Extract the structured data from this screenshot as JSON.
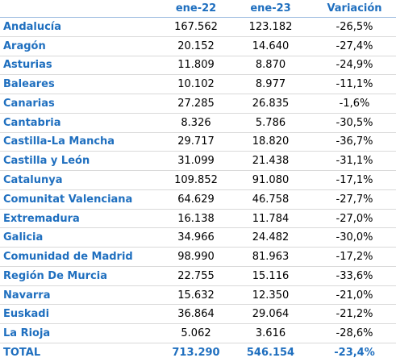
{
  "table": {
    "header": [
      "ene-22",
      "ene-23",
      "Variación"
    ],
    "rows": [
      [
        "Andalucía",
        "167.562",
        "123.182",
        "-26,5%"
      ],
      [
        "Aragón",
        "20.152",
        "14.640",
        "-27,4%"
      ],
      [
        "Asturias",
        "11.809",
        "8.870",
        "-24,9%"
      ],
      [
        "Baleares",
        "10.102",
        "8.977",
        "-11,1%"
      ],
      [
        "Canarias",
        "27.285",
        "26.835",
        "-1,6%"
      ],
      [
        "Cantabria",
        "8.326",
        "5.786",
        "-30,5%"
      ],
      [
        "Castilla-La Mancha",
        "29.717",
        "18.820",
        "-36,7%"
      ],
      [
        "Castilla y León",
        "31.099",
        "21.438",
        "-31,1%"
      ],
      [
        "Catalunya",
        "109.852",
        "91.080",
        "-17,1%"
      ],
      [
        "Comunitat Valenciana",
        "64.629",
        "46.758",
        "-27,7%"
      ],
      [
        "Extremadura",
        "16.138",
        "11.784",
        "-27,0%"
      ],
      [
        "Galicia",
        "34.966",
        "24.482",
        "-30,0%"
      ],
      [
        "Comunidad de Madrid",
        "98.990",
        "81.963",
        "-17,2%"
      ],
      [
        "Región De Murcia",
        "22.755",
        "15.116",
        "-33,6%"
      ],
      [
        "Navarra",
        "15.632",
        "12.350",
        "-21,0%"
      ],
      [
        "Euskadi",
        "36.864",
        "29.064",
        "-21,2%"
      ],
      [
        "La Rioja",
        "5.062",
        "3.616",
        "-28,6%"
      ]
    ],
    "total": [
      "TOTAL",
      "713.290",
      "546.154",
      "-23,4%"
    ]
  }
}
